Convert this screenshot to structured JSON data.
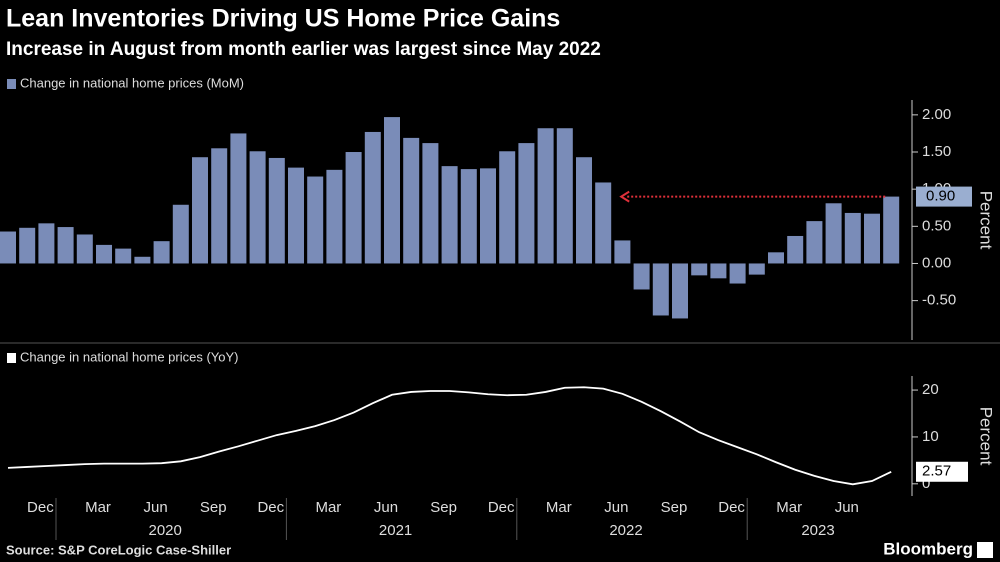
{
  "header": {
    "title": "Lean Inventories Driving US Home Price Gains",
    "subtitle": "Increase in August from month earlier was largest since May 2022"
  },
  "chart_data": [
    {
      "type": "bar",
      "legend": "Change in national home prices (MoM)",
      "color": "#7a8cb8",
      "values": [
        0.43,
        0.48,
        0.54,
        0.49,
        0.39,
        0.25,
        0.2,
        0.09,
        0.3,
        0.79,
        1.43,
        1.55,
        1.75,
        1.51,
        1.42,
        1.29,
        1.17,
        1.26,
        1.5,
        1.77,
        1.97,
        1.69,
        1.62,
        1.31,
        1.27,
        1.28,
        1.51,
        1.62,
        1.82,
        1.82,
        1.43,
        1.09,
        0.31,
        -0.35,
        -0.7,
        -0.74,
        -0.16,
        -0.2,
        -0.27,
        -0.15,
        0.15,
        0.37,
        0.57,
        0.81,
        0.68,
        0.67,
        0.9
      ],
      "ylim": [
        -1.03,
        2.2
      ],
      "yticks": [
        {
          "value": 2,
          "label": "2.00"
        },
        {
          "value": 1.5,
          "label": "1.50"
        },
        {
          "value": 1,
          "label": "1.00"
        },
        {
          "value": 0.5,
          "label": "0.50"
        },
        {
          "value": 0,
          "label": "0.00"
        },
        {
          "value": -0.5,
          "label": "-0.50"
        }
      ],
      "y_label": "Percent",
      "last_value_label": "0.90",
      "annotation_color": "#e0303a"
    },
    {
      "type": "line",
      "legend": "Change in national home prices (YoY)",
      "color": "#ffffff",
      "categories": [
        null,
        null,
        "Dec",
        null,
        null,
        "Mar",
        null,
        null,
        "Jun",
        null,
        null,
        "Sep",
        null,
        null,
        "Dec",
        null,
        null,
        "Mar",
        null,
        null,
        "Jun",
        null,
        null,
        "Sep",
        null,
        null,
        "Dec",
        null,
        null,
        "Mar",
        null,
        null,
        "Jun",
        null,
        null,
        "Sep",
        null,
        null,
        "Dec",
        null,
        null,
        "Mar",
        null,
        null,
        "Jun",
        null,
        null
      ],
      "x_year_labels": [
        "2020",
        "2021",
        "2022",
        "2023"
      ],
      "values": [
        3.4,
        3.6,
        3.8,
        4.0,
        4.2,
        4.3,
        4.3,
        4.3,
        4.4,
        4.8,
        5.7,
        6.9,
        8.0,
        9.2,
        10.4,
        11.3,
        12.3,
        13.6,
        15.2,
        17.2,
        19.0,
        19.6,
        19.8,
        19.8,
        19.5,
        19.1,
        18.9,
        19.0,
        19.6,
        20.5,
        20.6,
        20.3,
        19.2,
        17.5,
        15.5,
        13.3,
        11.0,
        9.3,
        7.8,
        6.3,
        4.6,
        3.0,
        1.7,
        0.6,
        -0.1,
        0.6,
        2.57
      ],
      "ylim": [
        -2.6,
        23
      ],
      "yticks": [
        20,
        10,
        0
      ],
      "y_label": "Percent",
      "last_value_label": "2.57"
    }
  ],
  "footer": {
    "source": "Source: S&P CoreLogic Case-Shiller",
    "brand": "Bloomberg"
  }
}
